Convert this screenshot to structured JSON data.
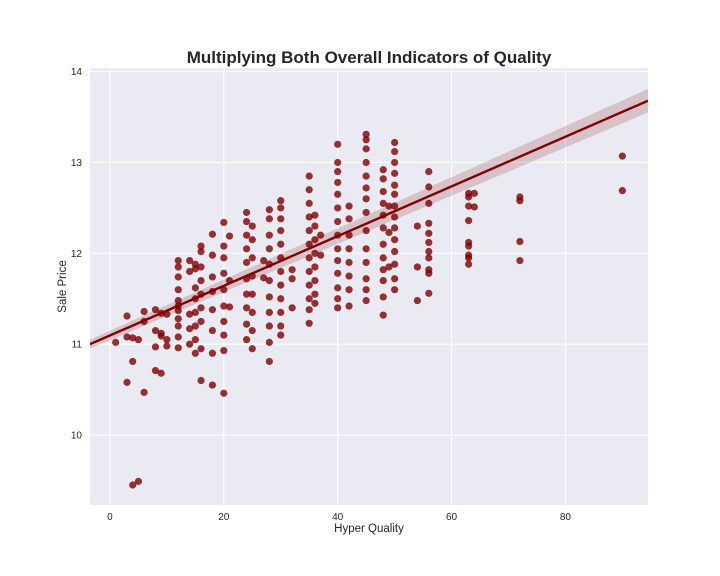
{
  "chart_data": {
    "type": "scatter",
    "title": "Multiplying Both Overall Indicators of Quality",
    "xlabel": "Hyper Quality",
    "ylabel": "Sale Price",
    "xlim": [
      -3.5,
      94.5
    ],
    "ylim": [
      9.23,
      14.04
    ],
    "x_ticks": [
      0,
      20,
      40,
      60,
      80
    ],
    "y_ticks": [
      10,
      11,
      12,
      13,
      14
    ],
    "grid": true,
    "background": "#eaeaf2",
    "point_color": "#800000",
    "line_color": "#800000",
    "band_color": "#800000",
    "regression": {
      "x": [
        -3.5,
        94.5
      ],
      "y": [
        11.0,
        13.68
      ],
      "ci_half_width": [
        0.05,
        0.13
      ]
    },
    "series": [
      {
        "points": [
          [
            1,
            11.02
          ],
          [
            3,
            11.31
          ],
          [
            3,
            11.08
          ],
          [
            3,
            10.58
          ],
          [
            4,
            11.07
          ],
          [
            4,
            10.81
          ],
          [
            4,
            9.45
          ],
          [
            5,
            11.05
          ],
          [
            5,
            9.49
          ],
          [
            6,
            11.25
          ],
          [
            6,
            11.36
          ],
          [
            6,
            10.47
          ],
          [
            8,
            11.38
          ],
          [
            8,
            11.15
          ],
          [
            8,
            10.97
          ],
          [
            8,
            10.71
          ],
          [
            9,
            11.34
          ],
          [
            9,
            11.12
          ],
          [
            9,
            11.09
          ],
          [
            9,
            10.68
          ],
          [
            10,
            11.33
          ],
          [
            10,
            11.05
          ],
          [
            10,
            10.98
          ],
          [
            12,
            11.92
          ],
          [
            12,
            11.85
          ],
          [
            12,
            11.74
          ],
          [
            12,
            11.6
          ],
          [
            12,
            11.48
          ],
          [
            12,
            11.42
          ],
          [
            12,
            11.37
          ],
          [
            12,
            11.28
          ],
          [
            12,
            11.2
          ],
          [
            12,
            11.08
          ],
          [
            12,
            10.96
          ],
          [
            14,
            11.92
          ],
          [
            14,
            11.8
          ],
          [
            14,
            11.33
          ],
          [
            14,
            11.17
          ],
          [
            14,
            11.0
          ],
          [
            15,
            11.88
          ],
          [
            15,
            11.83
          ],
          [
            15,
            11.62
          ],
          [
            15,
            11.5
          ],
          [
            15,
            11.35
          ],
          [
            15,
            11.2
          ],
          [
            15,
            11.05
          ],
          [
            15,
            10.9
          ],
          [
            16,
            12.08
          ],
          [
            16,
            12.02
          ],
          [
            16,
            11.85
          ],
          [
            16,
            11.7
          ],
          [
            16,
            11.55
          ],
          [
            16,
            11.4
          ],
          [
            16,
            11.25
          ],
          [
            16,
            10.95
          ],
          [
            16,
            10.6
          ],
          [
            18,
            12.21
          ],
          [
            18,
            11.98
          ],
          [
            18,
            11.74
          ],
          [
            18,
            11.58
          ],
          [
            18,
            11.38
          ],
          [
            18,
            11.15
          ],
          [
            18,
            10.9
          ],
          [
            18,
            10.55
          ],
          [
            20,
            12.34
          ],
          [
            20,
            12.08
          ],
          [
            20,
            11.95
          ],
          [
            20,
            11.78
          ],
          [
            20,
            11.6
          ],
          [
            20,
            11.42
          ],
          [
            20,
            11.25
          ],
          [
            20,
            11.1
          ],
          [
            20,
            10.93
          ],
          [
            20,
            10.46
          ],
          [
            21,
            12.19
          ],
          [
            21,
            11.7
          ],
          [
            21,
            11.41
          ],
          [
            24,
            12.45
          ],
          [
            24,
            12.35
          ],
          [
            24,
            12.2
          ],
          [
            24,
            12.05
          ],
          [
            24,
            11.9
          ],
          [
            24,
            11.72
          ],
          [
            24,
            11.55
          ],
          [
            24,
            11.4
          ],
          [
            24,
            11.22
          ],
          [
            24,
            11.05
          ],
          [
            25,
            12.3
          ],
          [
            25,
            12.15
          ],
          [
            25,
            11.95
          ],
          [
            25,
            11.75
          ],
          [
            25,
            11.55
          ],
          [
            25,
            11.35
          ],
          [
            25,
            11.15
          ],
          [
            25,
            10.95
          ],
          [
            27,
            11.92
          ],
          [
            27,
            11.73
          ],
          [
            28,
            12.48
          ],
          [
            28,
            12.38
          ],
          [
            28,
            12.2
          ],
          [
            28,
            12.05
          ],
          [
            28,
            11.88
          ],
          [
            28,
            11.7
          ],
          [
            28,
            11.52
          ],
          [
            28,
            11.35
          ],
          [
            28,
            11.2
          ],
          [
            28,
            11.02
          ],
          [
            28,
            10.81
          ],
          [
            30,
            12.58
          ],
          [
            30,
            12.5
          ],
          [
            30,
            12.38
          ],
          [
            30,
            12.25
          ],
          [
            30,
            12.1
          ],
          [
            30,
            11.95
          ],
          [
            30,
            11.8
          ],
          [
            30,
            11.65
          ],
          [
            30,
            11.5
          ],
          [
            30,
            11.35
          ],
          [
            30,
            11.2
          ],
          [
            30,
            11.1
          ],
          [
            32,
            11.82
          ],
          [
            32,
            11.72
          ],
          [
            32,
            11.4
          ],
          [
            35,
            12.85
          ],
          [
            35,
            12.7
          ],
          [
            35,
            12.55
          ],
          [
            35,
            12.4
          ],
          [
            35,
            12.25
          ],
          [
            35,
            12.1
          ],
          [
            35,
            11.95
          ],
          [
            35,
            11.8
          ],
          [
            35,
            11.65
          ],
          [
            35,
            11.5
          ],
          [
            35,
            11.38
          ],
          [
            35,
            11.23
          ],
          [
            36,
            12.42
          ],
          [
            36,
            12.3
          ],
          [
            36,
            12.15
          ],
          [
            36,
            12.0
          ],
          [
            36,
            11.85
          ],
          [
            36,
            11.7
          ],
          [
            36,
            11.55
          ],
          [
            36,
            11.45
          ],
          [
            37,
            12.2
          ],
          [
            37,
            11.98
          ],
          [
            40,
            13.2
          ],
          [
            40,
            13.0
          ],
          [
            40,
            12.9
          ],
          [
            40,
            12.78
          ],
          [
            40,
            12.65
          ],
          [
            40,
            12.5
          ],
          [
            40,
            12.35
          ],
          [
            40,
            12.2
          ],
          [
            40,
            12.05
          ],
          [
            40,
            11.92
          ],
          [
            40,
            11.78
          ],
          [
            40,
            11.62
          ],
          [
            40,
            11.5
          ],
          [
            40,
            11.4
          ],
          [
            42,
            12.52
          ],
          [
            42,
            12.38
          ],
          [
            42,
            12.2
          ],
          [
            42,
            12.05
          ],
          [
            42,
            11.9
          ],
          [
            42,
            11.75
          ],
          [
            42,
            11.6
          ],
          [
            42,
            11.42
          ],
          [
            45,
            13.31
          ],
          [
            45,
            13.25
          ],
          [
            45,
            13.15
          ],
          [
            45,
            13.0
          ],
          [
            45,
            12.85
          ],
          [
            45,
            12.72
          ],
          [
            45,
            12.6
          ],
          [
            45,
            12.45
          ],
          [
            45,
            12.25
          ],
          [
            45,
            12.05
          ],
          [
            45,
            11.9
          ],
          [
            45,
            11.72
          ],
          [
            45,
            11.6
          ],
          [
            45,
            11.48
          ],
          [
            48,
            12.92
          ],
          [
            48,
            12.82
          ],
          [
            48,
            12.68
          ],
          [
            48,
            12.55
          ],
          [
            48,
            12.42
          ],
          [
            48,
            12.28
          ],
          [
            48,
            12.1
          ],
          [
            48,
            11.95
          ],
          [
            48,
            11.82
          ],
          [
            48,
            11.7
          ],
          [
            48,
            11.52
          ],
          [
            48,
            11.32
          ],
          [
            49,
            12.52
          ],
          [
            49,
            12.23
          ],
          [
            49,
            11.85
          ],
          [
            50,
            13.22
          ],
          [
            50,
            13.12
          ],
          [
            50,
            13.0
          ],
          [
            50,
            12.88
          ],
          [
            50,
            12.75
          ],
          [
            50,
            12.65
          ],
          [
            50,
            12.52
          ],
          [
            50,
            12.4
          ],
          [
            50,
            12.28
          ],
          [
            50,
            12.15
          ],
          [
            50,
            12.02
          ],
          [
            50,
            11.88
          ],
          [
            50,
            11.72
          ],
          [
            50,
            11.6
          ],
          [
            54,
            12.3
          ],
          [
            54,
            11.85
          ],
          [
            54,
            11.48
          ],
          [
            56,
            12.9
          ],
          [
            56,
            12.73
          ],
          [
            56,
            12.55
          ],
          [
            56,
            12.33
          ],
          [
            56,
            12.22
          ],
          [
            56,
            12.12
          ],
          [
            56,
            12.02
          ],
          [
            56,
            11.95
          ],
          [
            56,
            11.82
          ],
          [
            56,
            11.78
          ],
          [
            56,
            11.56
          ],
          [
            63,
            12.66
          ],
          [
            63,
            12.62
          ],
          [
            63,
            12.52
          ],
          [
            63,
            12.36
          ],
          [
            63,
            12.12
          ],
          [
            63,
            12.08
          ],
          [
            63,
            11.98
          ],
          [
            63,
            11.95
          ],
          [
            63,
            11.88
          ],
          [
            64,
            12.66
          ],
          [
            64,
            12.51
          ],
          [
            72,
            12.62
          ],
          [
            72,
            12.58
          ],
          [
            72,
            12.13
          ],
          [
            72,
            11.92
          ],
          [
            90,
            13.07
          ],
          [
            90,
            12.69
          ]
        ]
      }
    ]
  }
}
